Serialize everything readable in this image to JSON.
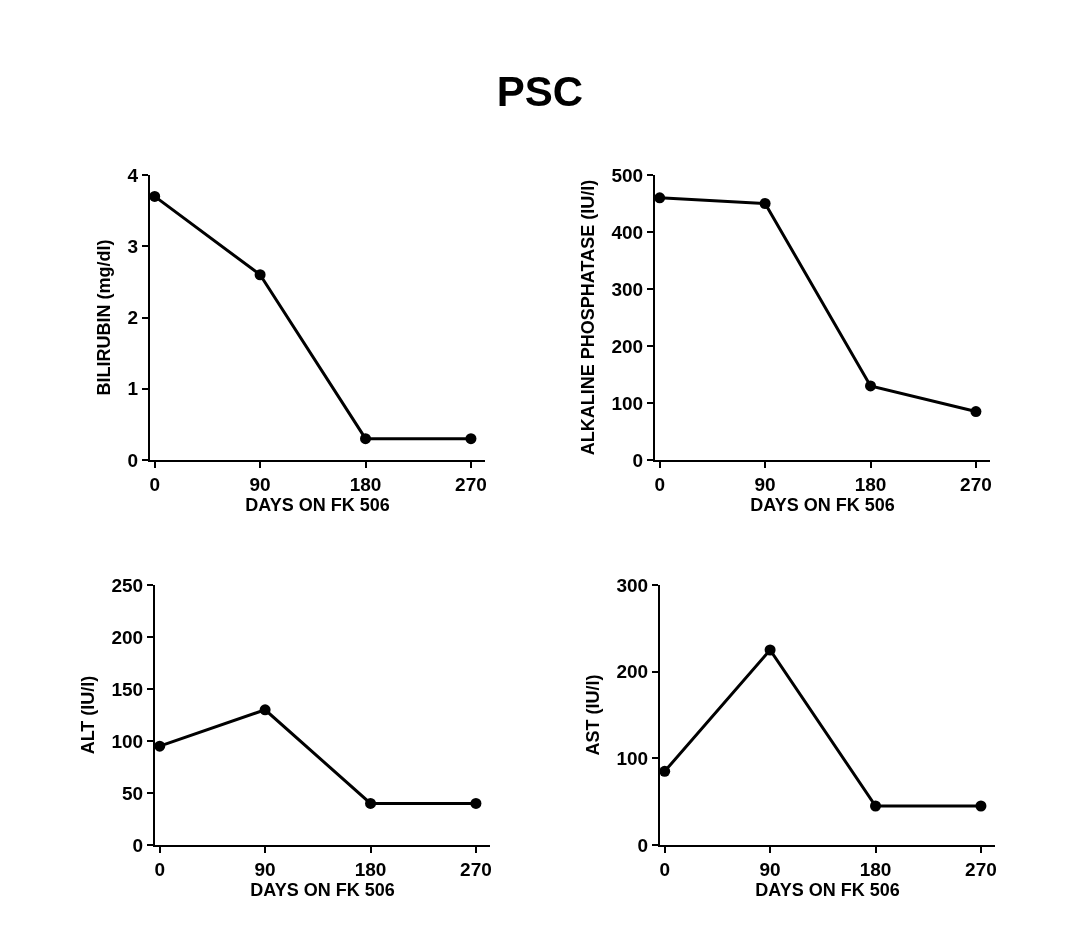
{
  "chart_data": [
    {
      "type": "line",
      "title": "PSC",
      "x": [
        0,
        90,
        180,
        270
      ],
      "values": [
        3.7,
        2.6,
        0.3,
        0.3
      ],
      "color": "#000000",
      "xlabel": "DAYS ON FK 506",
      "ylabel": "BILIRUBIN (mg/dl)",
      "xlim": [
        -4,
        282
      ],
      "xticks": [
        0,
        90,
        180,
        270
      ],
      "ylim": [
        0,
        4
      ],
      "yticks": [
        0,
        1,
        2,
        3,
        4
      ],
      "marker": "circle",
      "line_style": "solid",
      "grid": false
    },
    {
      "type": "line",
      "x": [
        0,
        90,
        180,
        270
      ],
      "values": [
        460,
        450,
        130,
        85
      ],
      "color": "#000000",
      "xlabel": "DAYS ON FK 506",
      "ylabel": "ALKALINE PHOSPHATASE (IU/l)",
      "xlim": [
        -4,
        282
      ],
      "xticks": [
        0,
        90,
        180,
        270
      ],
      "ylim": [
        0,
        500
      ],
      "yticks": [
        0,
        100,
        200,
        300,
        400,
        500
      ],
      "marker": "circle",
      "line_style": "solid",
      "grid": false
    },
    {
      "type": "line",
      "x": [
        0,
        90,
        180,
        270
      ],
      "values": [
        95,
        130,
        40,
        40
      ],
      "color": "#000000",
      "xlabel": "DAYS ON FK 506",
      "ylabel": "ALT (IU/l)",
      "xlim": [
        -4,
        282
      ],
      "xticks": [
        0,
        90,
        180,
        270
      ],
      "ylim": [
        0,
        250
      ],
      "yticks": [
        0,
        50,
        100,
        150,
        200,
        250
      ],
      "marker": "circle",
      "line_style": "solid",
      "grid": false
    },
    {
      "type": "line",
      "x": [
        0,
        90,
        180,
        270
      ],
      "values": [
        85,
        225,
        45,
        45
      ],
      "color": "#000000",
      "xlabel": "DAYS ON FK 506",
      "ylabel": "AST (IU/l)",
      "xlim": [
        -4,
        282
      ],
      "xticks": [
        0,
        90,
        180,
        270
      ],
      "ylim": [
        0,
        300
      ],
      "yticks": [
        0,
        100,
        200,
        300
      ],
      "marker": "circle",
      "line_style": "solid",
      "grid": false
    }
  ]
}
